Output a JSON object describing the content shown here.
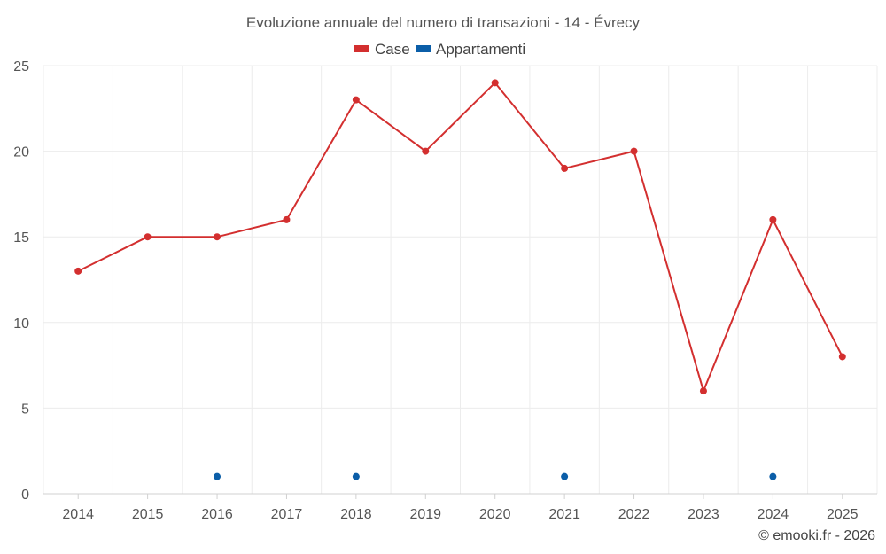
{
  "chart_data": {
    "type": "line",
    "title": "Evoluzione annuale del numero di transazioni - 14 - Évrecy",
    "categories": [
      "2014",
      "2015",
      "2016",
      "2017",
      "2018",
      "2019",
      "2020",
      "2021",
      "2022",
      "2023",
      "2024",
      "2025"
    ],
    "series": [
      {
        "name": "Case",
        "color": "#d32f2f",
        "connected": true,
        "values": [
          13,
          15,
          15,
          16,
          23,
          20,
          24,
          19,
          20,
          6,
          16,
          8
        ]
      },
      {
        "name": "Appartamenti",
        "color": "#0b5ea8",
        "connected": false,
        "values": [
          null,
          null,
          1,
          null,
          1,
          null,
          null,
          1,
          null,
          null,
          1,
          null
        ]
      }
    ],
    "ylim": [
      0,
      25
    ],
    "yticks": [
      0,
      5,
      10,
      15,
      20,
      25
    ],
    "grid": true,
    "legend": "top-center",
    "xlabel": "",
    "ylabel": ""
  },
  "credit": "© emooki.fr - 2026"
}
